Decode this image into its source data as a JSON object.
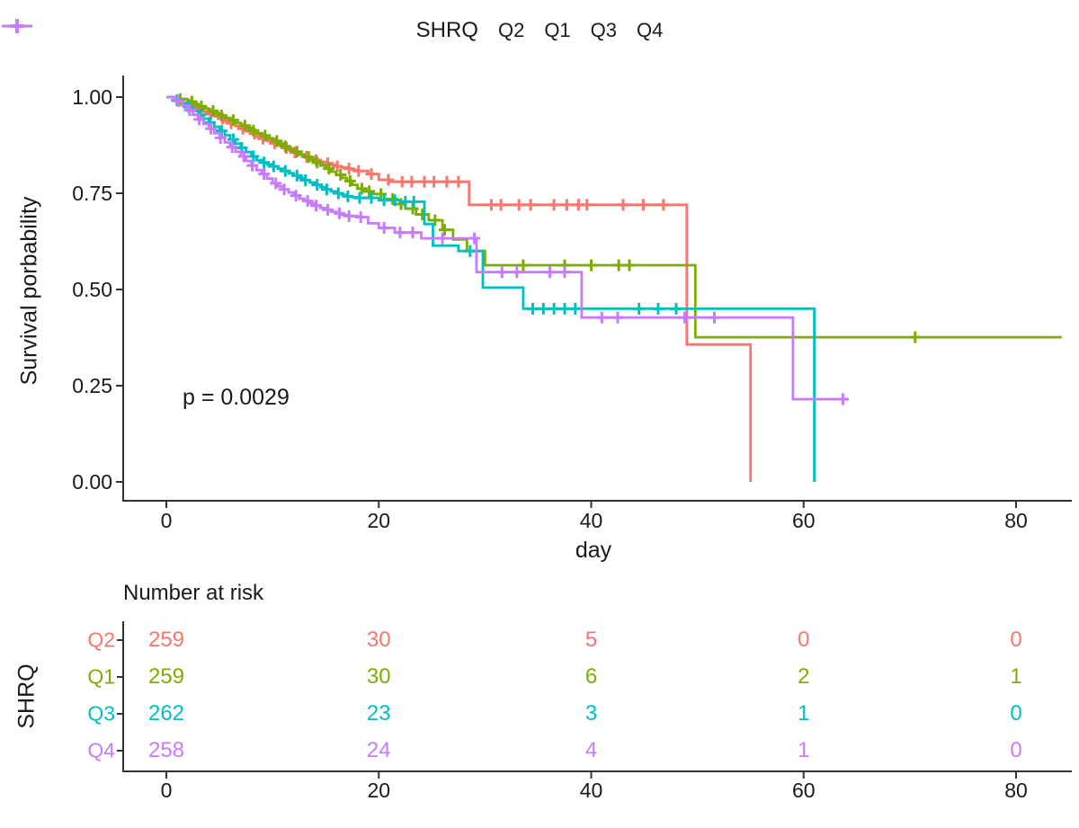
{
  "legend": {
    "title": "SHRQ",
    "items": [
      {
        "label": "Q2",
        "color": "#F8766D"
      },
      {
        "label": "Q1",
        "color": "#7CAE00"
      },
      {
        "label": "Q3",
        "color": "#00BFC4"
      },
      {
        "label": "Q4",
        "color": "#C77CFF"
      }
    ]
  },
  "annotation": {
    "p_value": "p = 0.0029"
  },
  "axes": {
    "x_label": "day",
    "y_label": "Survival porbability",
    "x_ticks": [
      {
        "label": "0",
        "value": 0
      },
      {
        "label": "20",
        "value": 20
      },
      {
        "label": "40",
        "value": 40
      },
      {
        "label": "60",
        "value": 60
      },
      {
        "label": "80",
        "value": 80
      }
    ],
    "y_ticks": [
      {
        "label": "1.00",
        "value": 1.0
      },
      {
        "label": "0.75",
        "value": 0.75
      },
      {
        "label": "0.50",
        "value": 0.5
      },
      {
        "label": "0.25",
        "value": 0.25
      },
      {
        "label": "0.00",
        "value": 0.0
      }
    ]
  },
  "risk_table": {
    "title": "Number at risk",
    "y_axis_label": "SHRQ",
    "columns_days": [
      0,
      20,
      40,
      60,
      80
    ],
    "rows": [
      {
        "label": "Q2",
        "color": "#F8766D",
        "values": [
          "259",
          "30",
          "5",
          "0",
          "0"
        ]
      },
      {
        "label": "Q1",
        "color": "#7CAE00",
        "values": [
          "259",
          "30",
          "6",
          "2",
          "1"
        ]
      },
      {
        "label": "Q3",
        "color": "#00BFC4",
        "values": [
          "262",
          "23",
          "3",
          "1",
          "0"
        ]
      },
      {
        "label": "Q4",
        "color": "#C77CFF",
        "values": [
          "258",
          "24",
          "4",
          "1",
          "0"
        ]
      }
    ]
  },
  "chart_data": {
    "type": "line",
    "subtype": "kaplan-meier-step",
    "title": "",
    "xlabel": "day",
    "ylabel": "Survival porbability",
    "xlim": [
      0,
      84.3
    ],
    "ylim": [
      0.0,
      1.0
    ],
    "legend_position": "top",
    "grid": false,
    "p_value": 0.0029,
    "series": [
      {
        "name": "Q2",
        "color": "#F8766D",
        "steps": [
          [
            0,
            1
          ],
          [
            1,
            0.99
          ],
          [
            1.5,
            0.985
          ],
          [
            2,
            0.98
          ],
          [
            2.5,
            0.974
          ],
          [
            3,
            0.968
          ],
          [
            3.5,
            0.962
          ],
          [
            4,
            0.956
          ],
          [
            4.5,
            0.95
          ],
          [
            5,
            0.944
          ],
          [
            5.5,
            0.938
          ],
          [
            6,
            0.932
          ],
          [
            6.5,
            0.925
          ],
          [
            7,
            0.918
          ],
          [
            7.5,
            0.911
          ],
          [
            8,
            0.905
          ],
          [
            8.5,
            0.898
          ],
          [
            9,
            0.892
          ],
          [
            9.5,
            0.886
          ],
          [
            10,
            0.88
          ],
          [
            10.5,
            0.874
          ],
          [
            11,
            0.868
          ],
          [
            11.5,
            0.862
          ],
          [
            12,
            0.856
          ],
          [
            12.5,
            0.85
          ],
          [
            13,
            0.845
          ],
          [
            13.5,
            0.84
          ],
          [
            14,
            0.836
          ],
          [
            14.5,
            0.832
          ],
          [
            15,
            0.828
          ],
          [
            15.5,
            0.824
          ],
          [
            16,
            0.82
          ],
          [
            16.5,
            0.817
          ],
          [
            17,
            0.814
          ],
          [
            17.5,
            0.811
          ],
          [
            18,
            0.808
          ],
          [
            19,
            0.8
          ],
          [
            20,
            0.785
          ],
          [
            21,
            0.78
          ],
          [
            28.5,
            0.72
          ],
          [
            49,
            0.357
          ],
          [
            55,
            0
          ]
        ],
        "censor_days": [
          1.2,
          2.2,
          3.1,
          4.2,
          5.3,
          6.1,
          7.2,
          8.3,
          9.1,
          10.2,
          11.3,
          12.1,
          13.2,
          14.1,
          15.2,
          16.1,
          17.2,
          18.1,
          19.3,
          20.9,
          22.2,
          23.1,
          24.3,
          25.2,
          26.4,
          27.5,
          30.6,
          31.5,
          33.2,
          34.3,
          36.5,
          37.7,
          38.8,
          39.6,
          43,
          44.9,
          46.8
        ]
      },
      {
        "name": "Q1",
        "color": "#7CAE00",
        "steps": [
          [
            0,
            1
          ],
          [
            1,
            0.995
          ],
          [
            2,
            0.988
          ],
          [
            2.5,
            0.982
          ],
          [
            3,
            0.976
          ],
          [
            3.5,
            0.97
          ],
          [
            4,
            0.964
          ],
          [
            4.5,
            0.958
          ],
          [
            5,
            0.952
          ],
          [
            5.5,
            0.946
          ],
          [
            6,
            0.94
          ],
          [
            6.5,
            0.933
          ],
          [
            7,
            0.926
          ],
          [
            7.5,
            0.92
          ],
          [
            8,
            0.913
          ],
          [
            8.5,
            0.906
          ],
          [
            9,
            0.9
          ],
          [
            9.5,
            0.893
          ],
          [
            10,
            0.886
          ],
          [
            10.5,
            0.879
          ],
          [
            11,
            0.872
          ],
          [
            11.5,
            0.865
          ],
          [
            12,
            0.858
          ],
          [
            12.5,
            0.851
          ],
          [
            13,
            0.844
          ],
          [
            13.5,
            0.837
          ],
          [
            14,
            0.83
          ],
          [
            14.5,
            0.822
          ],
          [
            15,
            0.814
          ],
          [
            15.5,
            0.806
          ],
          [
            16,
            0.798
          ],
          [
            16.5,
            0.79
          ],
          [
            17,
            0.782
          ],
          [
            17.5,
            0.772
          ],
          [
            18,
            0.762
          ],
          [
            18.5,
            0.755
          ],
          [
            19.5,
            0.748
          ],
          [
            20.5,
            0.735
          ],
          [
            21.5,
            0.722
          ],
          [
            22.5,
            0.71
          ],
          [
            23.5,
            0.695
          ],
          [
            24.7,
            0.68
          ],
          [
            26,
            0.655
          ],
          [
            27,
            0.63
          ],
          [
            28.3,
            0.6
          ],
          [
            30,
            0.563
          ],
          [
            49.8,
            0.376
          ],
          [
            84.3,
            0.376
          ]
        ],
        "censor_days": [
          1.3,
          2.4,
          3.3,
          4.4,
          5.2,
          6.3,
          7.4,
          8.2,
          9.3,
          10.4,
          11.2,
          12.3,
          13.4,
          14.2,
          15.3,
          16.4,
          17.3,
          18.4,
          19.1,
          20.2,
          21.3,
          22.1,
          23.2,
          24.1,
          25.3,
          26.2,
          33.6,
          37.5,
          40,
          42.6,
          43.6,
          70.5
        ]
      },
      {
        "name": "Q3",
        "color": "#00BFC4",
        "steps": [
          [
            0,
            1
          ],
          [
            0.8,
            0.992
          ],
          [
            1.5,
            0.983
          ],
          [
            2,
            0.974
          ],
          [
            2.5,
            0.964
          ],
          [
            3,
            0.954
          ],
          [
            3.5,
            0.944
          ],
          [
            4,
            0.934
          ],
          [
            4.5,
            0.923
          ],
          [
            5,
            0.912
          ],
          [
            5.5,
            0.901
          ],
          [
            6,
            0.89
          ],
          [
            6.5,
            0.879
          ],
          [
            7,
            0.868
          ],
          [
            7.5,
            0.857
          ],
          [
            8,
            0.846
          ],
          [
            8.5,
            0.836
          ],
          [
            9,
            0.83
          ],
          [
            9.5,
            0.825
          ],
          [
            10,
            0.82
          ],
          [
            10.5,
            0.814
          ],
          [
            11,
            0.808
          ],
          [
            11.5,
            0.802
          ],
          [
            12,
            0.796
          ],
          [
            12.5,
            0.79
          ],
          [
            13,
            0.784
          ],
          [
            13.5,
            0.778
          ],
          [
            14,
            0.772
          ],
          [
            14.5,
            0.766
          ],
          [
            15,
            0.76
          ],
          [
            15.5,
            0.755
          ],
          [
            16,
            0.75
          ],
          [
            16.5,
            0.746
          ],
          [
            17,
            0.742
          ],
          [
            17.5,
            0.74
          ],
          [
            18,
            0.738
          ],
          [
            20,
            0.732
          ],
          [
            22,
            0.728
          ],
          [
            24.3,
            0.67
          ],
          [
            25.1,
            0.614
          ],
          [
            27.5,
            0.6
          ],
          [
            29.8,
            0.505
          ],
          [
            33.6,
            0.45
          ],
          [
            61,
            0
          ]
        ],
        "censor_days": [
          1,
          2.1,
          3.2,
          4.1,
          5.2,
          6.3,
          7.1,
          8.2,
          9.2,
          10.1,
          11.2,
          12.3,
          13.1,
          14.2,
          15.1,
          16.2,
          17.1,
          18.2,
          19.3,
          20.5,
          21.5,
          22.5,
          23.3,
          28.6,
          34.5,
          35.5,
          36.5,
          37.5,
          38.5,
          44.5,
          46.3,
          48
        ]
      },
      {
        "name": "Q4",
        "color": "#C77CFF",
        "steps": [
          [
            0,
            1
          ],
          [
            0.8,
            0.99
          ],
          [
            1.5,
            0.978
          ],
          [
            2,
            0.966
          ],
          [
            2.5,
            0.954
          ],
          [
            3,
            0.942
          ],
          [
            3.5,
            0.93
          ],
          [
            4,
            0.918
          ],
          [
            4.5,
            0.906
          ],
          [
            5,
            0.894
          ],
          [
            5.5,
            0.882
          ],
          [
            6,
            0.87
          ],
          [
            6.5,
            0.858
          ],
          [
            7,
            0.846
          ],
          [
            7.5,
            0.834
          ],
          [
            8,
            0.822
          ],
          [
            8.5,
            0.81
          ],
          [
            9,
            0.8
          ],
          [
            9.5,
            0.788
          ],
          [
            10,
            0.776
          ],
          [
            10.5,
            0.768
          ],
          [
            11,
            0.76
          ],
          [
            11.5,
            0.752
          ],
          [
            12,
            0.744
          ],
          [
            12.5,
            0.736
          ],
          [
            13,
            0.73
          ],
          [
            13.5,
            0.724
          ],
          [
            14,
            0.718
          ],
          [
            14.5,
            0.712
          ],
          [
            15,
            0.707
          ],
          [
            15.5,
            0.702
          ],
          [
            16,
            0.698
          ],
          [
            16.5,
            0.694
          ],
          [
            17,
            0.691
          ],
          [
            18,
            0.688
          ],
          [
            19,
            0.672
          ],
          [
            20,
            0.66
          ],
          [
            21.5,
            0.648
          ],
          [
            24,
            0.633
          ],
          [
            29.2,
            0.545
          ],
          [
            39.1,
            0.427
          ],
          [
            59,
            0.215
          ],
          [
            63.7,
            0.215
          ]
        ],
        "censor_days": [
          1.1,
          2.2,
          3.1,
          4.2,
          5.1,
          6.2,
          7.3,
          8.1,
          9.2,
          10.3,
          11.1,
          12.2,
          13.3,
          14.1,
          15.2,
          16.3,
          17.2,
          18.3,
          20.5,
          22,
          23.2,
          26,
          29,
          31.6,
          33,
          36.1,
          37.5,
          41,
          42.5,
          48.8,
          51.6,
          63.7
        ]
      }
    ],
    "number_at_risk": {
      "days": [
        0,
        20,
        40,
        60,
        80
      ],
      "Q2": [
        259,
        30,
        5,
        0,
        0
      ],
      "Q1": [
        259,
        30,
        6,
        2,
        1
      ],
      "Q3": [
        262,
        23,
        3,
        1,
        0
      ],
      "Q4": [
        258,
        24,
        4,
        1,
        0
      ]
    }
  }
}
